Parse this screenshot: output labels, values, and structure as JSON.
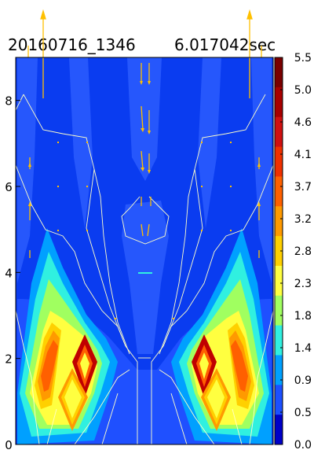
{
  "chart_data": {
    "type": "heatmap",
    "title_left": "20160716_1346",
    "title_right": "6.017042sec",
    "xlabel": "",
    "ylabel": "",
    "y_ticks": [
      "0",
      "2",
      "4",
      "6",
      "8"
    ],
    "y_tick_values": [
      0,
      2,
      4,
      6,
      8
    ],
    "ylim": [
      0,
      9
    ],
    "xlim": [
      0,
      1
    ],
    "colorbar_ticks": [
      "5.5",
      "5.0",
      "4.6",
      "4.1",
      "3.7",
      "3.2",
      "2.8",
      "2.3",
      "1.8",
      "1.4",
      "0.9",
      "0.5",
      "0.0"
    ],
    "colorbar_values": [
      5.5,
      5.0,
      4.6,
      4.1,
      3.7,
      3.2,
      2.8,
      2.3,
      1.8,
      1.4,
      0.9,
      0.5,
      0.0
    ],
    "colorbar_colors": [
      "#7a0000",
      "#a80000",
      "#d01010",
      "#f03000",
      "#ff6000",
      "#ff9a00",
      "#ffd000",
      "#ffff40",
      "#a0ff60",
      "#30f0e0",
      "#00a0ff",
      "#1c50ff",
      "#0000c8"
    ],
    "background_color": "#0a3cf0",
    "hotspots": [
      {
        "x": 0.12,
        "y": 1.9,
        "value": 4.3
      },
      {
        "x": 0.22,
        "y": 1.1,
        "value": 3.3
      },
      {
        "x": 0.24,
        "y": 2.2,
        "value": 5.3
      },
      {
        "x": 0.78,
        "y": 2.2,
        "value": 5.3
      },
      {
        "x": 0.8,
        "y": 1.1,
        "value": 3.3
      },
      {
        "x": 0.89,
        "y": 1.9,
        "value": 4.3
      }
    ],
    "vector_arrow_color": "#ffc000",
    "contour_color": "#ffff80"
  }
}
